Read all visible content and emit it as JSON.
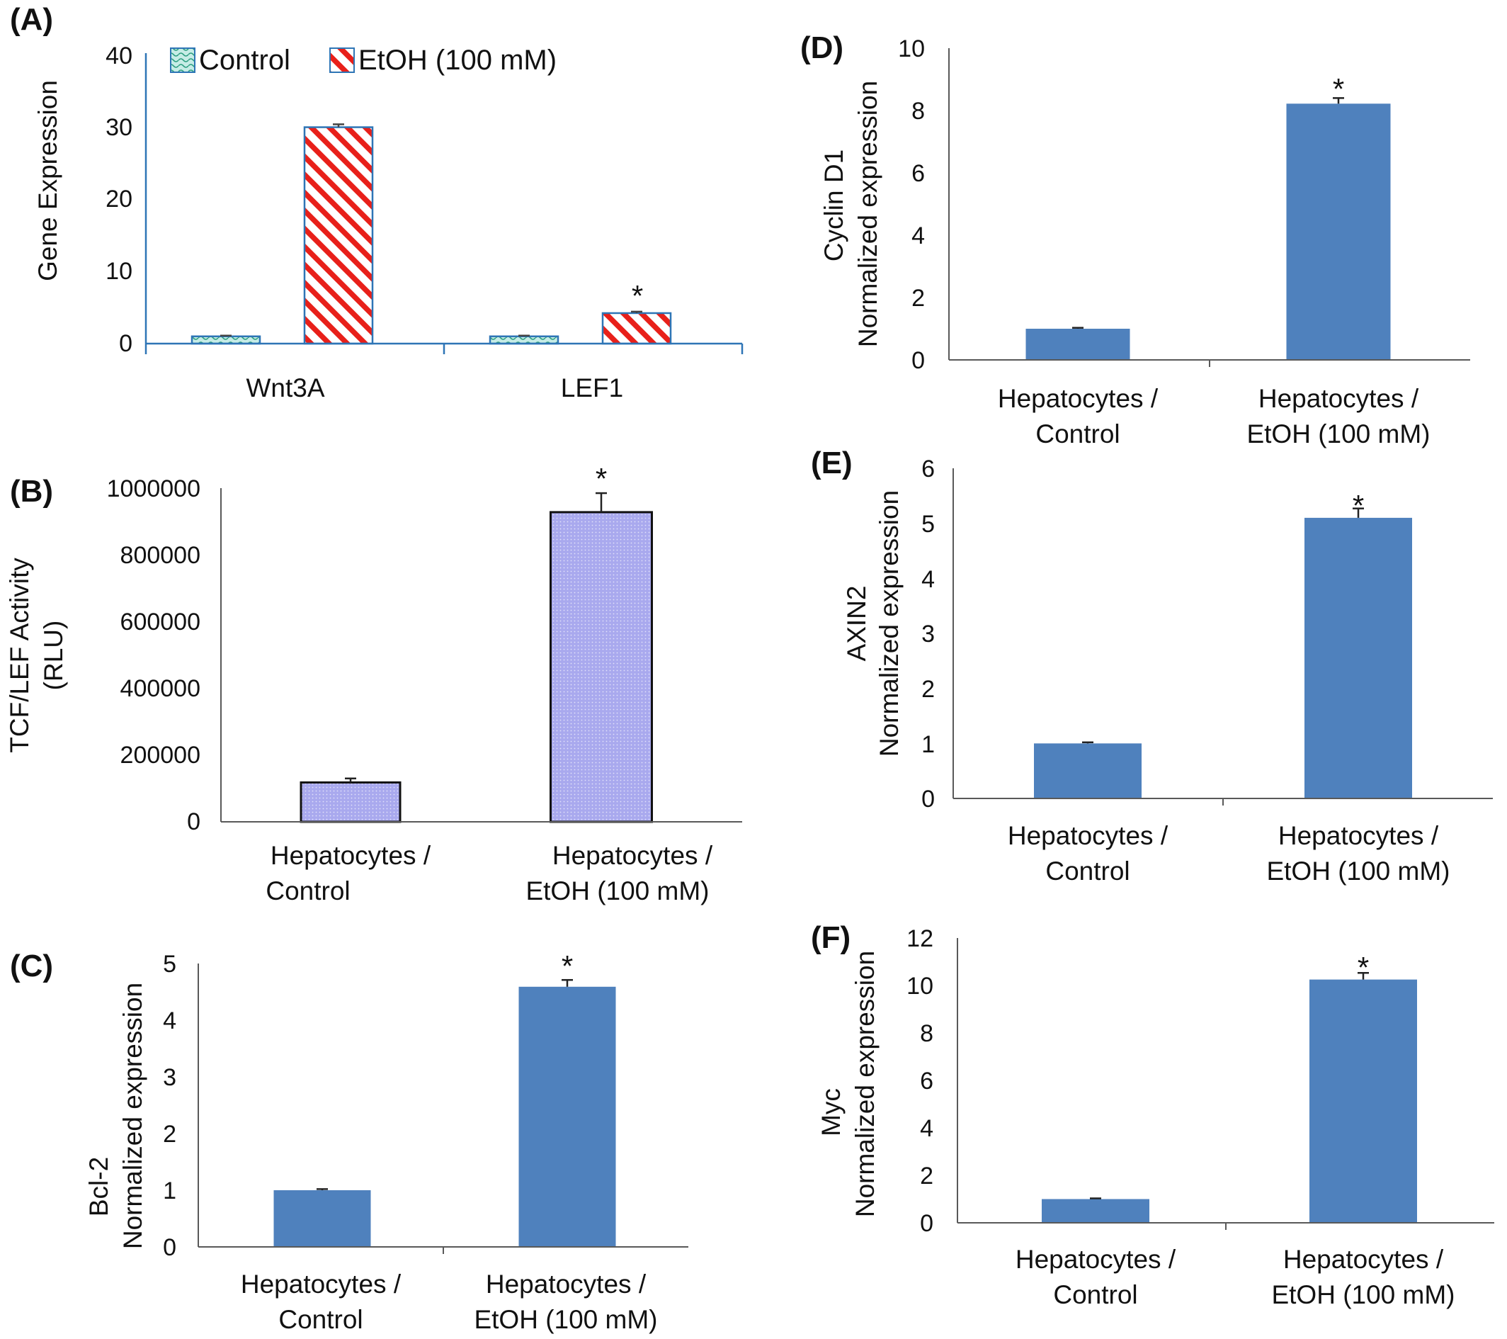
{
  "figure": {
    "panels": [
      "A",
      "B",
      "C",
      "D",
      "E",
      "F"
    ]
  },
  "colors": {
    "control_fill": "#c6ece6",
    "control_stroke": "#2e75b6",
    "etoh_stripe": "#e8201a",
    "etoh_stroke": "#2e75b6",
    "purple_fill": "#a9a9ee",
    "solid_blue": "#4f81bd",
    "axis": "#595959",
    "axis_blue": "#2e75b6"
  },
  "chart_data": [
    {
      "panel": "A",
      "letter": "(A)",
      "type": "bar",
      "categories": [
        "Wnt3A",
        "LEF1"
      ],
      "series": [
        {
          "name": "Control",
          "values": [
            1.0,
            1.0
          ],
          "errors": [
            0.1,
            0.1
          ]
        },
        {
          "name": "EtOH (100 mM)",
          "values": [
            29.8,
            4.2
          ],
          "errors": [
            0.4,
            0.2
          ]
        }
      ],
      "significance": [
        null,
        "*"
      ],
      "ylabel": "Gene Expression",
      "ylim": [
        0,
        40
      ],
      "yticks": [
        0,
        10,
        20,
        30,
        40
      ],
      "legend": "top"
    },
    {
      "panel": "B",
      "letter": "(B)",
      "type": "bar",
      "categories": [
        "Hepatocytes / Control",
        "Hepatocytes / EtOH (100 mM)"
      ],
      "category_lines": [
        [
          "Hepatocytes /",
          "Control"
        ],
        [
          "Hepatocytes /",
          "EtOH (100 mM)"
        ]
      ],
      "values": [
        118000,
        928000
      ],
      "errors": [
        12000,
        57000
      ],
      "significance": [
        null,
        "*"
      ],
      "ylabel_lines": [
        "TCF/LEF Activity",
        "(RLU)"
      ],
      "ylim": [
        0,
        1000000
      ],
      "yticks": [
        0,
        200000,
        400000,
        600000,
        800000,
        1000000
      ]
    },
    {
      "panel": "C",
      "letter": "(C)",
      "type": "bar",
      "categories": [
        "Hepatocytes / Control",
        "Hepatocytes / EtOH (100 mM)"
      ],
      "category_lines": [
        [
          "Hepatocytes /",
          "Control"
        ],
        [
          "Hepatocytes /",
          "EtOH (100 mM)"
        ]
      ],
      "values": [
        1.0,
        4.59
      ],
      "errors": [
        0.02,
        0.12
      ],
      "significance": [
        null,
        "*"
      ],
      "ylabel_lines": [
        "Bcl-2",
        "Normalized expression"
      ],
      "ylim": [
        0,
        5
      ],
      "yticks": [
        0,
        1,
        2,
        3,
        4,
        5
      ]
    },
    {
      "panel": "D",
      "letter": "(D)",
      "type": "bar",
      "categories": [
        "Hepatocytes / Control",
        "Hepatocytes / EtOH (100 mM)"
      ],
      "category_lines": [
        [
          "Hepatocytes /",
          "Control"
        ],
        [
          "Hepatocytes /",
          "EtOH (100 mM)"
        ]
      ],
      "values": [
        1.0,
        8.22
      ],
      "errors": [
        0.03,
        0.18
      ],
      "significance": [
        null,
        "*"
      ],
      "ylabel_lines": [
        "Cyclin D1",
        "Normalized expression"
      ],
      "ylim": [
        0,
        10
      ],
      "yticks": [
        0,
        2,
        4,
        6,
        8,
        10
      ]
    },
    {
      "panel": "E",
      "letter": "(E)",
      "type": "bar",
      "categories": [
        "Hepatocytes / Control",
        "Hepatocytes / EtOH (100 mM)"
      ],
      "category_lines": [
        [
          "Hepatocytes /",
          "Control"
        ],
        [
          "Hepatocytes /",
          "EtOH (100 mM)"
        ]
      ],
      "values": [
        1.0,
        5.1
      ],
      "errors": [
        0.02,
        0.17
      ],
      "significance": [
        null,
        "*"
      ],
      "ylabel_lines": [
        "AXIN2",
        "Normalized expression"
      ],
      "ylim": [
        0,
        6
      ],
      "yticks": [
        0,
        1,
        2,
        3,
        4,
        5,
        6
      ]
    },
    {
      "panel": "F",
      "letter": "(F)",
      "type": "bar",
      "categories": [
        "Hepatocytes / Control",
        "Hepatocytes / EtOH (100 mM)"
      ],
      "category_lines": [
        [
          "Hepatocytes /",
          "Control"
        ],
        [
          "Hepatocytes /",
          "EtOH (100 mM)"
        ]
      ],
      "values": [
        1.0,
        10.25
      ],
      "errors": [
        0.03,
        0.28
      ],
      "significance": [
        null,
        "*"
      ],
      "ylabel_lines": [
        "Myc",
        "Normalized expression"
      ],
      "ylim": [
        0,
        12
      ],
      "yticks": [
        0,
        2,
        4,
        6,
        8,
        10,
        12
      ]
    }
  ]
}
